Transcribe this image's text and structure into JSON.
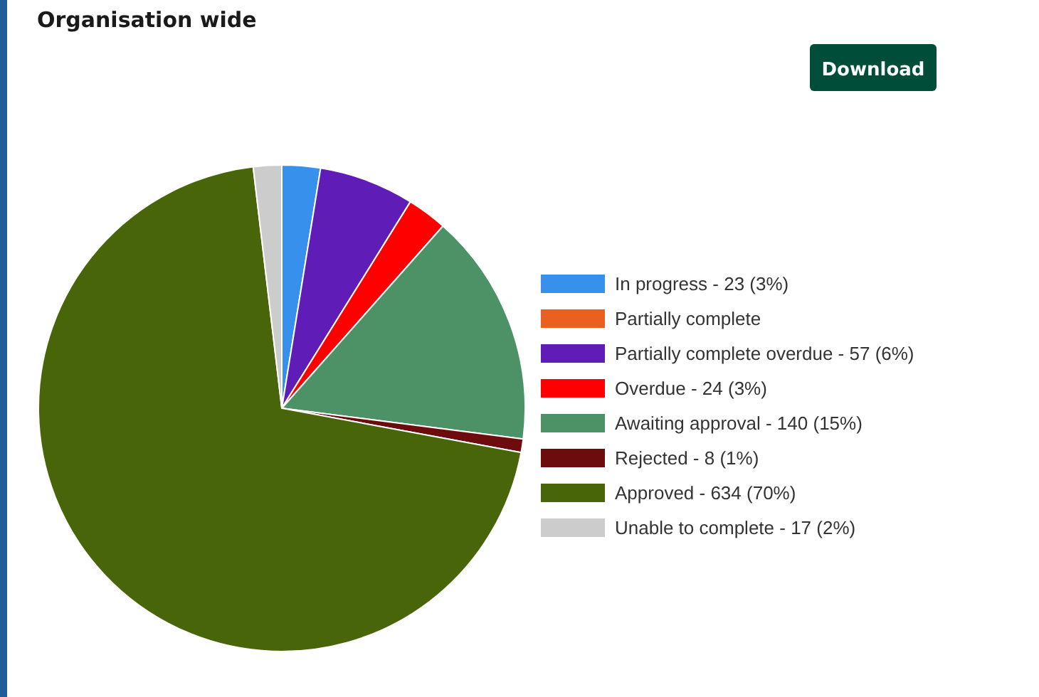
{
  "chart_data": {
    "type": "pie",
    "title": "Organisation wide",
    "categories": [
      "In progress - 23 (3%)",
      "Partially complete",
      "Partially complete overdue - 57 (6%)",
      "Overdue - 24 (3%)",
      "Awaiting approval - 140 (15%)",
      "Rejected - 8 (1%)",
      "Approved - 634 (70%)",
      "Unable to complete - 17 (2%)"
    ],
    "values": [
      2.55,
      0,
      6.31,
      2.66,
      15.5,
      0.89,
      70.21,
      1.88
    ],
    "colors": [
      "#3790ec",
      "#e9601f",
      "#5f1cb6",
      "#ff0000",
      "#4c9266",
      "#6c0c0c",
      "#48650a",
      "#cccccc"
    ],
    "legend": "right",
    "annotations": [
      "Download"
    ]
  }
}
